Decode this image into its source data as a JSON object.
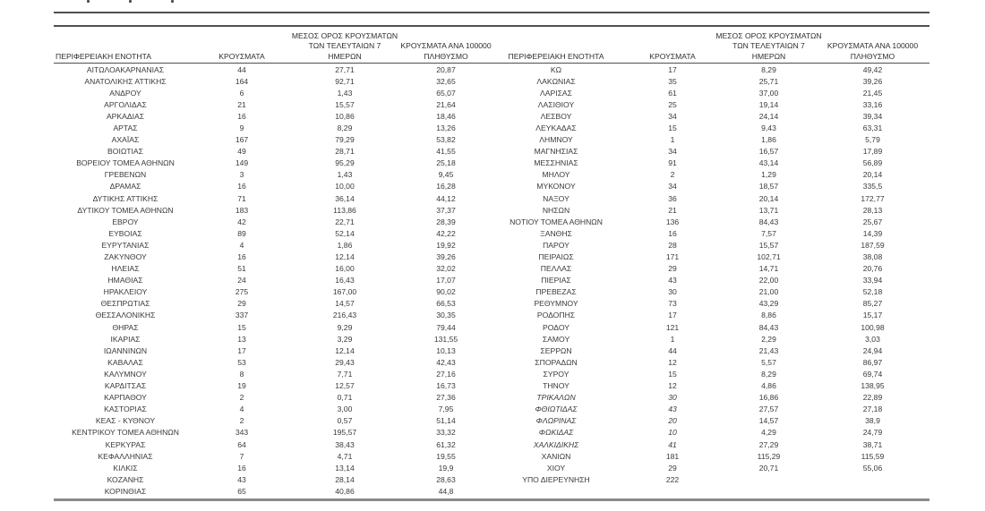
{
  "header": {
    "region": "ΠΕΡΙΦΕΡΕΙΑΚΗ ΕΝΟΤΗΤΑ",
    "cases": "ΚΡΟΥΣΜΑΤΑ",
    "avg7_lines": [
      "ΜΕΣΟΣ ΟΡΟΣ ΚΡΟΥΣΜΑΤΩΝ",
      "ΤΩΝ ΤΕΛΕΥΤΑΙΩΝ 7",
      "ΗΜΕΡΩΝ"
    ],
    "per100k_lines": [
      "ΚΡΟΥΣΜΑΤΑ ΑΝΑ 100000",
      "ΠΛΗΘΥΣΜΟ"
    ]
  },
  "colors": {
    "text": "#3a3a3a",
    "rule_dark": "#4f4f4f",
    "rule_bottom": "#8a8a8a",
    "background": "#ffffff"
  },
  "tables": {
    "left": {
      "rows": [
        {
          "region": "ΑΙΤΩΛΟΑΚΑΡΝΑΝΙΑΣ",
          "cases": "44",
          "avg7": "27,71",
          "per100k": "20,87",
          "italic": false
        },
        {
          "region": "ΑΝΑΤΟΛΙΚΗΣ ΑΤΤΙΚΗΣ",
          "cases": "164",
          "avg7": "92,71",
          "per100k": "32,65",
          "italic": false
        },
        {
          "region": "ΑΝΔΡΟΥ",
          "cases": "6",
          "avg7": "1,43",
          "per100k": "65,07",
          "italic": false
        },
        {
          "region": "ΑΡΓΟΛΙΔΑΣ",
          "cases": "21",
          "avg7": "15,57",
          "per100k": "21,64",
          "italic": false
        },
        {
          "region": "ΑΡΚΑΔΙΑΣ",
          "cases": "16",
          "avg7": "10,86",
          "per100k": "18,46",
          "italic": false
        },
        {
          "region": "ΑΡΤΑΣ",
          "cases": "9",
          "avg7": "8,29",
          "per100k": "13,26",
          "italic": false
        },
        {
          "region": "ΑΧΑΪΑΣ",
          "cases": "167",
          "avg7": "79,29",
          "per100k": "53,82",
          "italic": false
        },
        {
          "region": "ΒΟΙΩΤΙΑΣ",
          "cases": "49",
          "avg7": "28,71",
          "per100k": "41,55",
          "italic": false
        },
        {
          "region": "ΒΟΡΕΙΟΥ ΤΟΜΕΑ ΑΘΗΝΩΝ",
          "cases": "149",
          "avg7": "95,29",
          "per100k": "25,18",
          "italic": false
        },
        {
          "region": "ΓΡΕΒΕΝΩΝ",
          "cases": "3",
          "avg7": "1,43",
          "per100k": "9,45",
          "italic": false
        },
        {
          "region": "ΔΡΑΜΑΣ",
          "cases": "16",
          "avg7": "10,00",
          "per100k": "16,28",
          "italic": false
        },
        {
          "region": "ΔΥΤΙΚΗΣ ΑΤΤΙΚΗΣ",
          "cases": "71",
          "avg7": "36,14",
          "per100k": "44,12",
          "italic": false
        },
        {
          "region": "ΔΥΤΙΚΟΥ ΤΟΜΕΑ ΑΘΗΝΩΝ",
          "cases": "183",
          "avg7": "113,86",
          "per100k": "37,37",
          "italic": false
        },
        {
          "region": "ΕΒΡΟΥ",
          "cases": "42",
          "avg7": "22,71",
          "per100k": "28,39",
          "italic": false
        },
        {
          "region": "ΕΥΒΟΙΑΣ",
          "cases": "89",
          "avg7": "52,14",
          "per100k": "42,22",
          "italic": false
        },
        {
          "region": "ΕΥΡΥΤΑΝΙΑΣ",
          "cases": "4",
          "avg7": "1,86",
          "per100k": "19,92",
          "italic": false
        },
        {
          "region": "ΖΑΚΥΝΘΟΥ",
          "cases": "16",
          "avg7": "12,14",
          "per100k": "39,26",
          "italic": false
        },
        {
          "region": "ΗΛΕΙΑΣ",
          "cases": "51",
          "avg7": "16,00",
          "per100k": "32,02",
          "italic": false
        },
        {
          "region": "ΗΜΑΘΙΑΣ",
          "cases": "24",
          "avg7": "16,43",
          "per100k": "17,07",
          "italic": false
        },
        {
          "region": "ΗΡΑΚΛΕΙΟΥ",
          "cases": "275",
          "avg7": "167,00",
          "per100k": "90,02",
          "italic": false
        },
        {
          "region": "ΘΕΣΠΡΩΤΙΑΣ",
          "cases": "29",
          "avg7": "14,57",
          "per100k": "66,53",
          "italic": false
        },
        {
          "region": "ΘΕΣΣΑΛΟΝΙΚΗΣ",
          "cases": "337",
          "avg7": "216,43",
          "per100k": "30,35",
          "italic": false
        },
        {
          "region": "ΘΗΡΑΣ",
          "cases": "15",
          "avg7": "9,29",
          "per100k": "79,44",
          "italic": false
        },
        {
          "region": "ΙΚΑΡΙΑΣ",
          "cases": "13",
          "avg7": "3,29",
          "per100k": "131,55",
          "italic": false
        },
        {
          "region": "ΙΩΑΝΝΙΝΩΝ",
          "cases": "17",
          "avg7": "12,14",
          "per100k": "10,13",
          "italic": false
        },
        {
          "region": "ΚΑΒΑΛΑΣ",
          "cases": "53",
          "avg7": "29,43",
          "per100k": "42,43",
          "italic": false
        },
        {
          "region": "ΚΑΛΥΜΝΟΥ",
          "cases": "8",
          "avg7": "7,71",
          "per100k": "27,16",
          "italic": false
        },
        {
          "region": "ΚΑΡΔΙΤΣΑΣ",
          "cases": "19",
          "avg7": "12,57",
          "per100k": "16,73",
          "italic": false
        },
        {
          "region": "ΚΑΡΠΑΘΟΥ",
          "cases": "2",
          "avg7": "0,71",
          "per100k": "27,36",
          "italic": false
        },
        {
          "region": "ΚΑΣΤΟΡΙΑΣ",
          "cases": "4",
          "avg7": "3,00",
          "per100k": "7,95",
          "italic": false
        },
        {
          "region": "ΚΕΑΣ - ΚΥΘΝΟΥ",
          "cases": "2",
          "avg7": "0,57",
          "per100k": "51,14",
          "italic": false
        },
        {
          "region": "ΚΕΝΤΡΙΚΟΥ ΤΟΜΕΑ ΑΘΗΝΩΝ",
          "cases": "343",
          "avg7": "195,57",
          "per100k": "33,32",
          "italic": false
        },
        {
          "region": "ΚΕΡΚΥΡΑΣ",
          "cases": "64",
          "avg7": "38,43",
          "per100k": "61,32",
          "italic": false
        },
        {
          "region": "ΚΕΦΑΛΛΗΝΙΑΣ",
          "cases": "7",
          "avg7": "4,71",
          "per100k": "19,55",
          "italic": false
        },
        {
          "region": "ΚΙΛΚΙΣ",
          "cases": "16",
          "avg7": "13,14",
          "per100k": "19,9",
          "italic": false
        },
        {
          "region": "ΚΟΖΑΝΗΣ",
          "cases": "43",
          "avg7": "28,14",
          "per100k": "28,63",
          "italic": false
        },
        {
          "region": "ΚΟΡΙΝΘΙΑΣ",
          "cases": "65",
          "avg7": "40,86",
          "per100k": "44,8",
          "italic": false
        }
      ]
    },
    "right": {
      "rows": [
        {
          "region": "ΚΩ",
          "cases": "17",
          "avg7": "8,29",
          "per100k": "49,42",
          "italic": false
        },
        {
          "region": "ΛΑΚΩΝΙΑΣ",
          "cases": "35",
          "avg7": "25,71",
          "per100k": "39,26",
          "italic": false
        },
        {
          "region": "ΛΑΡΙΣΑΣ",
          "cases": "61",
          "avg7": "37,00",
          "per100k": "21,45",
          "italic": false
        },
        {
          "region": "ΛΑΣΙΘΙΟΥ",
          "cases": "25",
          "avg7": "19,14",
          "per100k": "33,16",
          "italic": false
        },
        {
          "region": "ΛΕΣΒΟΥ",
          "cases": "34",
          "avg7": "24,14",
          "per100k": "39,34",
          "italic": false
        },
        {
          "region": "ΛΕΥΚΑΔΑΣ",
          "cases": "15",
          "avg7": "9,43",
          "per100k": "63,31",
          "italic": false
        },
        {
          "region": "ΛΗΜΝΟΥ",
          "cases": "1",
          "avg7": "1,86",
          "per100k": "5,79",
          "italic": false
        },
        {
          "region": "ΜΑΓΝΗΣΙΑΣ",
          "cases": "34",
          "avg7": "16,57",
          "per100k": "17,89",
          "italic": false
        },
        {
          "region": "ΜΕΣΣΗΝΙΑΣ",
          "cases": "91",
          "avg7": "43,14",
          "per100k": "56,89",
          "italic": false
        },
        {
          "region": "ΜΗΛΟΥ",
          "cases": "2",
          "avg7": "1,29",
          "per100k": "20,14",
          "italic": false
        },
        {
          "region": "ΜΥΚΟΝΟΥ",
          "cases": "34",
          "avg7": "18,57",
          "per100k": "335,5",
          "italic": false
        },
        {
          "region": "ΝΑΞΟΥ",
          "cases": "36",
          "avg7": "20,14",
          "per100k": "172,77",
          "italic": false
        },
        {
          "region": "ΝΗΣΩΝ",
          "cases": "21",
          "avg7": "13,71",
          "per100k": "28,13",
          "italic": false
        },
        {
          "region": "ΝΟΤΙΟΥ ΤΟΜΕΑ ΑΘΗΝΩΝ",
          "cases": "136",
          "avg7": "84,43",
          "per100k": "25,67",
          "italic": false
        },
        {
          "region": "ΞΑΝΘΗΣ",
          "cases": "16",
          "avg7": "7,57",
          "per100k": "14,39",
          "italic": false
        },
        {
          "region": "ΠΑΡΟΥ",
          "cases": "28",
          "avg7": "15,57",
          "per100k": "187,59",
          "italic": false
        },
        {
          "region": "ΠΕΙΡΑΙΩΣ",
          "cases": "171",
          "avg7": "102,71",
          "per100k": "38,08",
          "italic": false
        },
        {
          "region": "ΠΕΛΛΑΣ",
          "cases": "29",
          "avg7": "14,71",
          "per100k": "20,76",
          "italic": false
        },
        {
          "region": "ΠΙΕΡΙΑΣ",
          "cases": "43",
          "avg7": "22,00",
          "per100k": "33,94",
          "italic": false
        },
        {
          "region": "ΠΡΕΒΕΖΑΣ",
          "cases": "30",
          "avg7": "21,00",
          "per100k": "52,18",
          "italic": false
        },
        {
          "region": "ΡΕΘΥΜΝΟΥ",
          "cases": "73",
          "avg7": "43,29",
          "per100k": "85,27",
          "italic": false
        },
        {
          "region": "ΡΟΔΟΠΗΣ",
          "cases": "17",
          "avg7": "8,86",
          "per100k": "15,17",
          "italic": false
        },
        {
          "region": "ΡΟΔΟΥ",
          "cases": "121",
          "avg7": "84,43",
          "per100k": "100,98",
          "italic": false
        },
        {
          "region": "ΣΑΜΟΥ",
          "cases": "1",
          "avg7": "2,29",
          "per100k": "3,03",
          "italic": false
        },
        {
          "region": "ΣΕΡΡΩΝ",
          "cases": "44",
          "avg7": "21,43",
          "per100k": "24,94",
          "italic": false
        },
        {
          "region": "ΣΠΟΡΑΔΩΝ",
          "cases": "12",
          "avg7": "5,57",
          "per100k": "86,97",
          "italic": false
        },
        {
          "region": "ΣΥΡΟΥ",
          "cases": "15",
          "avg7": "8,29",
          "per100k": "69,74",
          "italic": false
        },
        {
          "region": "ΤΗΝΟΥ",
          "cases": "12",
          "avg7": "4,86",
          "per100k": "138,95",
          "italic": false
        },
        {
          "region": "ΤΡΙΚΑΛΩΝ",
          "cases": "30",
          "avg7": "16,86",
          "per100k": "22,89",
          "italic": true
        },
        {
          "region": "ΦΘΙΩΤΙΔΑΣ",
          "cases": "43",
          "avg7": "27,57",
          "per100k": "27,18",
          "italic": true
        },
        {
          "region": "ΦΛΩΡΙΝΑΣ",
          "cases": "20",
          "avg7": "14,57",
          "per100k": "38,9",
          "italic": true
        },
        {
          "region": "ΦΩΚΙΔΑΣ",
          "cases": "10",
          "avg7": "4,29",
          "per100k": "24,79",
          "italic": true
        },
        {
          "region": "ΧΑΛΚΙΔΙΚΗΣ",
          "cases": "41",
          "avg7": "27,29",
          "per100k": "38,71",
          "italic": true
        },
        {
          "region": "ΧΑΝΙΩΝ",
          "cases": "181",
          "avg7": "115,29",
          "per100k": "115,59",
          "italic": false
        },
        {
          "region": "ΧΙΟΥ",
          "cases": "29",
          "avg7": "20,71",
          "per100k": "55,06",
          "italic": false
        },
        {
          "region": "ΥΠΟ ΔΙΕΡΕΥΝΗΣΗ",
          "cases": "222",
          "avg7": "",
          "per100k": "",
          "italic": false
        }
      ]
    }
  }
}
